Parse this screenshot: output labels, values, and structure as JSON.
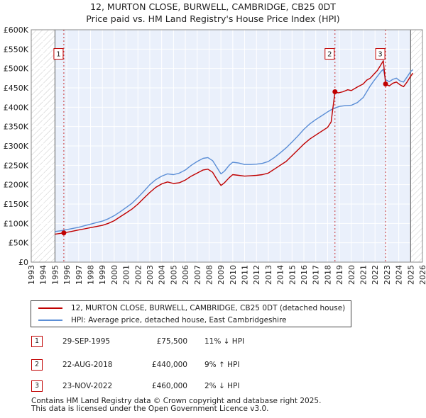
{
  "title_line1": "12, MURTON CLOSE, BURWELL, CAMBRIDGE, CB25 0DT",
  "title_line2": "Price paid vs. HM Land Registry's House Price Index (HPI)",
  "colors": {
    "property": "#c00000",
    "hpi": "#5b8ed6",
    "hatch": "#c8c8c8",
    "grid": "#d8d8d8",
    "bg": "#eaf0fb"
  },
  "chart_data": {
    "type": "line",
    "xlim": [
      1993,
      2026
    ],
    "ylim": [
      0,
      600000
    ],
    "x_ticks": [
      "1993",
      "1994",
      "1995",
      "1996",
      "1997",
      "1998",
      "1999",
      "2000",
      "2001",
      "2002",
      "2003",
      "2004",
      "2005",
      "2006",
      "2007",
      "2008",
      "2009",
      "2010",
      "2011",
      "2012",
      "2013",
      "2014",
      "2015",
      "2016",
      "2017",
      "2018",
      "2019",
      "2020",
      "2021",
      "2022",
      "2023",
      "2024",
      "2025",
      "2026"
    ],
    "y_ticks": [
      {
        "value": 0,
        "label": "£0"
      },
      {
        "value": 50000,
        "label": "£50K"
      },
      {
        "value": 100000,
        "label": "£100K"
      },
      {
        "value": 150000,
        "label": "£150K"
      },
      {
        "value": 200000,
        "label": "£200K"
      },
      {
        "value": 250000,
        "label": "£250K"
      },
      {
        "value": 300000,
        "label": "£300K"
      },
      {
        "value": 350000,
        "label": "£350K"
      },
      {
        "value": 400000,
        "label": "£400K"
      },
      {
        "value": 450000,
        "label": "£450K"
      },
      {
        "value": 500000,
        "label": "£500K"
      },
      {
        "value": 550000,
        "label": "£550K"
      },
      {
        "value": 600000,
        "label": "£600K"
      }
    ],
    "hatch_before": 1995.0,
    "hatch_after": 2025.0,
    "series": [
      {
        "name": "12, MURTON CLOSE, BURWELL, CAMBRIDGE, CB25 0DT (detached house)",
        "color": "#c00000",
        "x": [
          1995.0,
          1995.75,
          1996.0,
          1996.5,
          1997.0,
          1997.5,
          1998.0,
          1998.5,
          1999.0,
          1999.5,
          2000.0,
          2000.5,
          2001.0,
          2001.5,
          2002.0,
          2002.5,
          2003.0,
          2003.5,
          2004.0,
          2004.5,
          2005.0,
          2005.5,
          2006.0,
          2006.5,
          2007.0,
          2007.5,
          2007.9,
          2008.3,
          2008.7,
          2009.0,
          2009.3,
          2009.7,
          2010.0,
          2010.5,
          2011.0,
          2011.5,
          2012.0,
          2012.5,
          2013.0,
          2013.5,
          2014.0,
          2014.5,
          2015.0,
          2015.5,
          2016.0,
          2016.5,
          2017.0,
          2017.5,
          2018.0,
          2018.3,
          2018.62,
          2018.9,
          2019.3,
          2019.7,
          2020.0,
          2020.5,
          2021.0,
          2021.3,
          2021.6,
          2021.9,
          2022.2,
          2022.5,
          2022.7,
          2022.89,
          2023.2,
          2023.5,
          2023.8,
          2024.1,
          2024.4,
          2024.7,
          2025.0,
          2025.2
        ],
        "y": [
          72000,
          75500,
          77000,
          80000,
          83000,
          86000,
          89000,
          92000,
          95000,
          100000,
          107000,
          117000,
          127000,
          137000,
          150000,
          165000,
          180000,
          193000,
          202000,
          207000,
          203000,
          205000,
          212000,
          222000,
          230000,
          238000,
          240000,
          232000,
          212000,
          198000,
          205000,
          218000,
          226000,
          224000,
          222000,
          223000,
          224000,
          226000,
          230000,
          240000,
          250000,
          260000,
          275000,
          290000,
          305000,
          318000,
          328000,
          338000,
          348000,
          362000,
          440000,
          437000,
          440000,
          445000,
          443000,
          452000,
          460000,
          470000,
          475000,
          485000,
          495000,
          510000,
          520000,
          460000,
          455000,
          462000,
          465000,
          458000,
          453000,
          465000,
          480000,
          488000
        ]
      },
      {
        "name": "HPI: Average price, detached house, East Cambridgeshire",
        "color": "#5b8ed6",
        "x": [
          1995.0,
          1995.5,
          1996.0,
          1996.5,
          1997.0,
          1997.5,
          1998.0,
          1998.5,
          1999.0,
          1999.5,
          2000.0,
          2000.5,
          2001.0,
          2001.5,
          2002.0,
          2002.5,
          2003.0,
          2003.5,
          2004.0,
          2004.5,
          2005.0,
          2005.5,
          2006.0,
          2006.5,
          2007.0,
          2007.5,
          2007.9,
          2008.3,
          2008.7,
          2009.0,
          2009.3,
          2009.7,
          2010.0,
          2010.5,
          2011.0,
          2011.5,
          2012.0,
          2012.5,
          2013.0,
          2013.5,
          2014.0,
          2014.5,
          2015.0,
          2015.5,
          2016.0,
          2016.5,
          2017.0,
          2017.5,
          2018.0,
          2018.5,
          2019.0,
          2019.5,
          2020.0,
          2020.5,
          2021.0,
          2021.3,
          2021.6,
          2021.9,
          2022.2,
          2022.5,
          2022.7,
          2022.89,
          2023.2,
          2023.5,
          2023.8,
          2024.1,
          2024.4,
          2024.7,
          2025.0,
          2025.2
        ],
        "y": [
          79000,
          81000,
          84000,
          87000,
          90000,
          94000,
          98000,
          102000,
          106000,
          112000,
          120000,
          130000,
          141000,
          152000,
          167000,
          183000,
          200000,
          213000,
          222000,
          228000,
          226000,
          230000,
          238000,
          250000,
          260000,
          268000,
          270000,
          262000,
          243000,
          228000,
          235000,
          250000,
          258000,
          256000,
          252000,
          252000,
          253000,
          255000,
          260000,
          270000,
          282000,
          295000,
          310000,
          326000,
          343000,
          357000,
          368000,
          378000,
          388000,
          397000,
          402000,
          404000,
          405000,
          412000,
          425000,
          440000,
          455000,
          468000,
          480000,
          492000,
          498000,
          471000,
          466000,
          472000,
          475000,
          468000,
          465000,
          478000,
          492000,
          497000
        ]
      }
    ],
    "sales": [
      {
        "num": "1",
        "x": 1995.75,
        "y": 75500,
        "label_y": 535000
      },
      {
        "num": "2",
        "x": 2018.62,
        "y": 440000,
        "label_y": 535000
      },
      {
        "num": "3",
        "x": 2022.89,
        "y": 460000,
        "label_y": 535000
      }
    ]
  },
  "legend": {
    "property_label": "12, MURTON CLOSE, BURWELL, CAMBRIDGE, CB25 0DT (detached house)",
    "hpi_label": "HPI: Average price, detached house, East Cambridgeshire"
  },
  "transactions": [
    {
      "num": "1",
      "date": "29-SEP-1995",
      "price": "£75,500",
      "hpi": "11% ↓ HPI"
    },
    {
      "num": "2",
      "date": "22-AUG-2018",
      "price": "£440,000",
      "hpi": "9% ↑ HPI"
    },
    {
      "num": "3",
      "date": "23-NOV-2022",
      "price": "£460,000",
      "hpi": "2% ↓ HPI"
    }
  ],
  "footer": {
    "line1": "Contains HM Land Registry data © Crown copyright and database right 2025.",
    "line2": "This data is licensed under the Open Government Licence v3.0."
  }
}
